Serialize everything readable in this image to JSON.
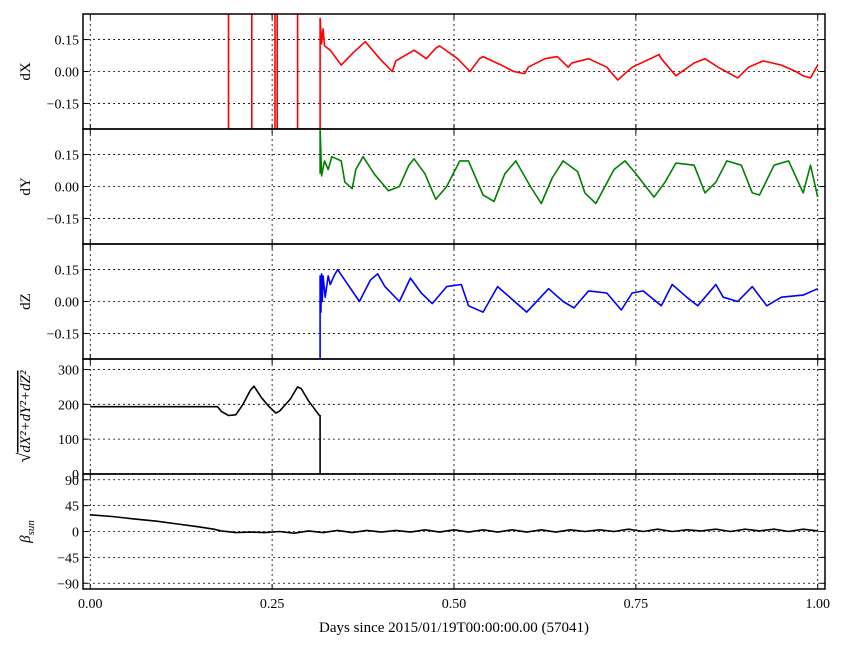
{
  "xlabel": "Days since 2015/01/19T00:00:00.00 (57041)",
  "x_ticks": [
    0.0,
    0.25,
    0.5,
    0.75,
    1.0
  ],
  "x_tick_labels": [
    "0.00",
    "0.25",
    "0.50",
    "0.75",
    "1.00"
  ],
  "chart_data": [
    {
      "type": "line",
      "ylabel": "dX",
      "xlim": [
        -0.01,
        1.01
      ],
      "ylim": [
        -0.27,
        0.27
      ],
      "yticks": [
        -0.15,
        0.0,
        0.15
      ],
      "ytick_labels": [
        "−0.15",
        "0.00",
        "0.15"
      ],
      "series": [
        {
          "color": "#ff0000",
          "x": [
            0.19,
            0.19,
            0.19,
            0.222,
            0.222,
            0.222,
            0.254,
            0.254,
            0.257,
            0.257,
            0.257,
            0.285,
            0.285,
            0.285,
            0.316,
            0.316,
            0.318,
            0.32,
            0.322,
            0.33,
            0.345,
            0.362,
            0.378,
            0.398,
            0.415,
            0.42,
            0.445,
            0.462,
            0.475,
            0.48,
            0.505,
            0.522,
            0.535,
            0.54,
            0.565,
            0.582,
            0.597,
            0.602,
            0.625,
            0.642,
            0.657,
            0.662,
            0.685,
            0.71,
            0.725,
            0.745,
            0.77,
            0.782,
            0.785,
            0.805,
            0.83,
            0.845,
            0.863,
            0.89,
            0.905,
            0.925,
            0.95,
            0.97,
            0.98,
            0.99,
            1.0
          ],
          "y": [
            -0.27,
            0.27,
            -0.27,
            -0.27,
            0.27,
            -0.27,
            -0.27,
            0.27,
            0.27,
            -0.27,
            -0.27,
            -0.27,
            0.27,
            -0.27,
            -0.27,
            0.25,
            0.13,
            0.2,
            0.12,
            0.1,
            0.03,
            0.09,
            0.14,
            0.06,
            0.0,
            0.05,
            0.1,
            0.06,
            0.11,
            0.12,
            0.06,
            0.0,
            0.06,
            0.07,
            0.03,
            0.0,
            -0.01,
            0.02,
            0.06,
            0.07,
            0.02,
            0.04,
            0.06,
            0.02,
            -0.04,
            0.02,
            0.06,
            0.08,
            0.06,
            -0.02,
            0.04,
            0.06,
            0.02,
            -0.03,
            0.02,
            0.05,
            0.03,
            0.0,
            -0.02,
            -0.03,
            0.03
          ]
        }
      ]
    },
    {
      "type": "line",
      "ylabel": "dY",
      "xlim": [
        -0.01,
        1.01
      ],
      "ylim": [
        -0.27,
        0.27
      ],
      "yticks": [
        -0.15,
        0.0,
        0.15
      ],
      "ytick_labels": [
        "−0.15",
        "0.00",
        "0.15"
      ],
      "series": [
        {
          "color": "#008000",
          "x": [
            0.316,
            0.316,
            0.318,
            0.322,
            0.327,
            0.332,
            0.345,
            0.35,
            0.36,
            0.365,
            0.375,
            0.39,
            0.41,
            0.425,
            0.438,
            0.445,
            0.46,
            0.475,
            0.49,
            0.508,
            0.52,
            0.54,
            0.555,
            0.57,
            0.585,
            0.605,
            0.62,
            0.635,
            0.65,
            0.67,
            0.68,
            0.695,
            0.72,
            0.735,
            0.75,
            0.775,
            0.79,
            0.805,
            0.83,
            0.845,
            0.86,
            0.875,
            0.895,
            0.91,
            0.92,
            0.94,
            0.96,
            0.98,
            0.99,
            1.0
          ],
          "y": [
            0.06,
            0.27,
            0.05,
            0.12,
            0.08,
            0.14,
            0.12,
            0.02,
            -0.01,
            0.08,
            0.14,
            0.06,
            -0.02,
            0.0,
            0.1,
            0.13,
            0.06,
            -0.06,
            0.0,
            0.12,
            0.12,
            -0.04,
            -0.07,
            0.06,
            0.12,
            0.0,
            -0.08,
            0.04,
            0.12,
            0.07,
            -0.03,
            -0.08,
            0.08,
            0.12,
            0.06,
            -0.05,
            0.02,
            0.11,
            0.1,
            -0.03,
            0.02,
            0.12,
            0.1,
            -0.03,
            -0.04,
            0.1,
            0.12,
            -0.03,
            0.1,
            -0.05
          ]
        }
      ]
    },
    {
      "type": "line",
      "ylabel": "dZ",
      "xlim": [
        -0.01,
        1.01
      ],
      "ylim": [
        -0.27,
        0.27
      ],
      "yticks": [
        -0.15,
        0.0,
        0.15
      ],
      "ytick_labels": [
        "−0.15",
        "0.00",
        "0.15"
      ],
      "series": [
        {
          "color": "#0000ff",
          "x": [
            0.316,
            0.316,
            0.317,
            0.318,
            0.319,
            0.32,
            0.323,
            0.327,
            0.33,
            0.335,
            0.34,
            0.35,
            0.37,
            0.385,
            0.395,
            0.405,
            0.425,
            0.44,
            0.455,
            0.47,
            0.49,
            0.51,
            0.52,
            0.54,
            0.56,
            0.58,
            0.6,
            0.63,
            0.65,
            0.665,
            0.685,
            0.71,
            0.73,
            0.745,
            0.76,
            0.785,
            0.8,
            0.82,
            0.835,
            0.86,
            0.87,
            0.89,
            0.91,
            0.93,
            0.95,
            0.98,
            1.0
          ],
          "y": [
            -0.27,
            0.12,
            -0.05,
            0.13,
            0.0,
            0.12,
            0.02,
            0.12,
            0.08,
            0.12,
            0.15,
            0.1,
            0.0,
            0.1,
            0.13,
            0.07,
            0.0,
            0.11,
            0.04,
            -0.01,
            0.07,
            0.08,
            -0.02,
            -0.05,
            0.07,
            0.01,
            -0.05,
            0.06,
            0.0,
            -0.03,
            0.05,
            0.04,
            -0.04,
            0.04,
            0.05,
            -0.02,
            0.08,
            0.02,
            -0.02,
            0.08,
            0.02,
            0.0,
            0.07,
            -0.02,
            0.02,
            0.03,
            0.06
          ]
        }
      ]
    },
    {
      "type": "line",
      "ylabel": "√(dX²+dY²+dZ²)",
      "xlim": [
        -0.01,
        1.01
      ],
      "ylim": [
        0,
        330
      ],
      "yticks": [
        0,
        100,
        200,
        300
      ],
      "ytick_labels": [
        "0",
        "100",
        "200",
        "300"
      ],
      "series": [
        {
          "color": "#000000",
          "x": [
            0.0,
            0.175,
            0.18,
            0.19,
            0.2,
            0.21,
            0.22,
            0.225,
            0.235,
            0.245,
            0.255,
            0.26,
            0.275,
            0.285,
            0.29,
            0.3,
            0.315,
            0.316,
            0.316
          ],
          "y": [
            193,
            193,
            180,
            168,
            170,
            200,
            240,
            252,
            220,
            195,
            175,
            180,
            215,
            250,
            245,
            210,
            168,
            168,
            0
          ]
        }
      ]
    },
    {
      "type": "line",
      "ylabel": "βsun",
      "xlim": [
        -0.01,
        1.01
      ],
      "ylim": [
        -100,
        100
      ],
      "yticks": [
        -90,
        -45,
        0,
        45,
        90
      ],
      "ytick_labels": [
        "−90",
        "−45",
        "0",
        "45",
        "90"
      ],
      "series": [
        {
          "color": "#000000",
          "x": [
            0.0,
            0.03,
            0.06,
            0.09,
            0.12,
            0.15,
            0.17,
            0.18,
            0.2,
            0.22,
            0.24,
            0.26,
            0.28,
            0.3,
            0.32,
            0.34,
            0.36,
            0.38,
            0.4,
            0.42,
            0.44,
            0.46,
            0.48,
            0.5,
            0.52,
            0.54,
            0.56,
            0.58,
            0.6,
            0.62,
            0.64,
            0.66,
            0.68,
            0.7,
            0.72,
            0.74,
            0.76,
            0.78,
            0.8,
            0.82,
            0.84,
            0.86,
            0.88,
            0.9,
            0.92,
            0.94,
            0.96,
            0.98,
            1.0
          ],
          "y": [
            29,
            26,
            22,
            18,
            13,
            8,
            4,
            1,
            -2,
            -1,
            -2,
            0,
            -3,
            1,
            -2,
            2,
            -2,
            2,
            -1,
            2,
            -1,
            3,
            -1,
            3,
            -1,
            3,
            -1,
            3,
            -1,
            3,
            -1,
            3,
            0,
            3,
            0,
            4,
            0,
            4,
            0,
            3,
            1,
            4,
            0,
            4,
            1,
            4,
            0,
            4,
            1
          ]
        }
      ]
    }
  ]
}
